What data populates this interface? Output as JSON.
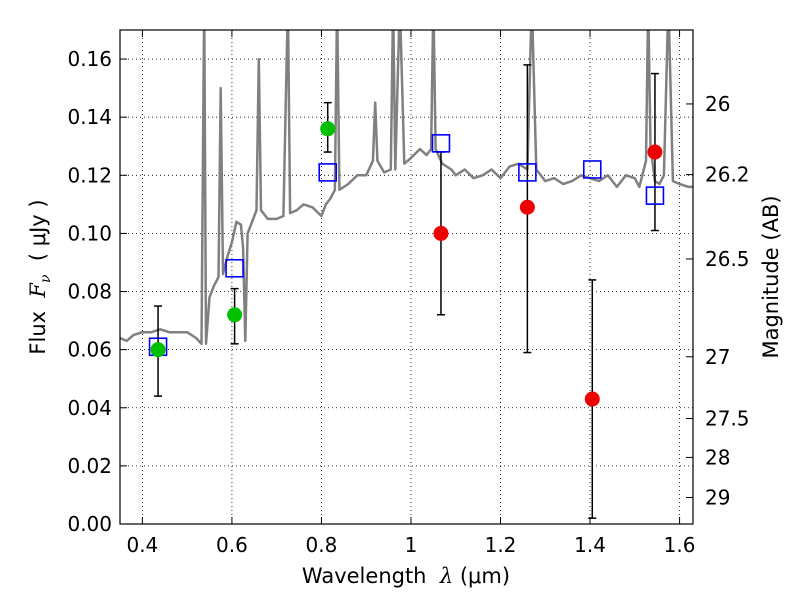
{
  "chart_data": {
    "type": "scatter",
    "xlabel": {
      "prefix": "Wavelength  ",
      "symbol": "λ",
      "unit": " (μm)"
    },
    "ylabel": {
      "prefix": "Flux  ",
      "symbol": "F",
      "subscript": "ν",
      "unit": "  ( μJy )"
    },
    "ylabel_right": "Magnitude (AB)",
    "xlim": [
      0.35,
      1.63
    ],
    "ylim": [
      0.0,
      0.17
    ],
    "grid": true,
    "x_ticks": [
      {
        "value": 0.4,
        "label": "0.4"
      },
      {
        "value": 0.6,
        "label": "0.6"
      },
      {
        "value": 0.8,
        "label": "0.8"
      },
      {
        "value": 1.0,
        "label": "1"
      },
      {
        "value": 1.2,
        "label": "1.2"
      },
      {
        "value": 1.4,
        "label": "1.4"
      },
      {
        "value": 1.6,
        "label": "1.6"
      }
    ],
    "y_ticks": [
      {
        "value": 0.0,
        "label": "0.00"
      },
      {
        "value": 0.02,
        "label": "0.02"
      },
      {
        "value": 0.04,
        "label": "0.04"
      },
      {
        "value": 0.06,
        "label": "0.06"
      },
      {
        "value": 0.08,
        "label": "0.08"
      },
      {
        "value": 0.1,
        "label": "0.10"
      },
      {
        "value": 0.12,
        "label": "0.12"
      },
      {
        "value": 0.14,
        "label": "0.14"
      },
      {
        "value": 0.16,
        "label": "0.16"
      }
    ],
    "right_ticks": [
      {
        "mag": 26.0,
        "label": "26"
      },
      {
        "mag": 26.2,
        "label": "26.2"
      },
      {
        "mag": 26.5,
        "label": "26.5"
      },
      {
        "mag": 27.0,
        "label": "27"
      },
      {
        "mag": 27.5,
        "label": "27.5"
      },
      {
        "mag": 28.0,
        "label": "28"
      },
      {
        "mag": 29.0,
        "label": "29"
      }
    ],
    "colors": {
      "spectrum": "#808080",
      "model": "#0000ff",
      "detected": "#00c000",
      "upper": "#ee0000",
      "errorbar": "#000000"
    },
    "model_points": [
      {
        "x": 0.435,
        "y": 0.061
      },
      {
        "x": 0.606,
        "y": 0.088
      },
      {
        "x": 0.814,
        "y": 0.121
      },
      {
        "x": 1.067,
        "y": 0.131
      },
      {
        "x": 1.26,
        "y": 0.121
      },
      {
        "x": 1.405,
        "y": 0.122
      },
      {
        "x": 1.545,
        "y": 0.113
      }
    ],
    "detected_points": [
      {
        "x": 0.435,
        "y": 0.06,
        "err_low": 0.044,
        "err_high": 0.075
      },
      {
        "x": 0.606,
        "y": 0.072,
        "err_low": 0.062,
        "err_high": 0.081
      },
      {
        "x": 0.814,
        "y": 0.136,
        "err_low": 0.128,
        "err_high": 0.145
      }
    ],
    "upper_points": [
      {
        "x": 1.067,
        "y": 0.1,
        "err_low": 0.072,
        "err_high": 0.128
      },
      {
        "x": 1.26,
        "y": 0.109,
        "err_low": 0.059,
        "err_high": 0.158
      },
      {
        "x": 1.405,
        "y": 0.043,
        "err_low": 0.002,
        "err_high": 0.084
      },
      {
        "x": 1.545,
        "y": 0.128,
        "err_low": 0.101,
        "err_high": 0.155
      }
    ],
    "spectrum": [
      [
        0.35,
        0.064
      ],
      [
        0.365,
        0.063
      ],
      [
        0.38,
        0.065
      ],
      [
        0.4,
        0.066
      ],
      [
        0.42,
        0.066
      ],
      [
        0.44,
        0.067
      ],
      [
        0.46,
        0.066
      ],
      [
        0.48,
        0.066
      ],
      [
        0.5,
        0.066
      ],
      [
        0.52,
        0.064
      ],
      [
        0.532,
        0.062
      ],
      [
        0.538,
        0.18
      ],
      [
        0.542,
        0.062
      ],
      [
        0.55,
        0.078
      ],
      [
        0.56,
        0.082
      ],
      [
        0.57,
        0.085
      ],
      [
        0.575,
        0.15
      ],
      [
        0.58,
        0.086
      ],
      [
        0.59,
        0.092
      ],
      [
        0.6,
        0.097
      ],
      [
        0.61,
        0.104
      ],
      [
        0.62,
        0.103
      ],
      [
        0.625,
        0.095
      ],
      [
        0.63,
        0.063
      ],
      [
        0.635,
        0.1
      ],
      [
        0.645,
        0.104
      ],
      [
        0.655,
        0.108
      ],
      [
        0.66,
        0.16
      ],
      [
        0.665,
        0.108
      ],
      [
        0.67,
        0.107
      ],
      [
        0.68,
        0.105
      ],
      [
        0.7,
        0.105
      ],
      [
        0.715,
        0.106
      ],
      [
        0.725,
        0.18
      ],
      [
        0.73,
        0.107
      ],
      [
        0.745,
        0.108
      ],
      [
        0.76,
        0.11
      ],
      [
        0.78,
        0.109
      ],
      [
        0.8,
        0.106
      ],
      [
        0.81,
        0.11
      ],
      [
        0.82,
        0.112
      ],
      [
        0.83,
        0.115
      ],
      [
        0.835,
        0.18
      ],
      [
        0.84,
        0.115
      ],
      [
        0.86,
        0.117
      ],
      [
        0.88,
        0.12
      ],
      [
        0.9,
        0.12
      ],
      [
        0.915,
        0.125
      ],
      [
        0.92,
        0.145
      ],
      [
        0.925,
        0.125
      ],
      [
        0.94,
        0.121
      ],
      [
        0.955,
        0.122
      ],
      [
        0.96,
        0.18
      ],
      [
        0.965,
        0.122
      ],
      [
        0.975,
        0.18
      ],
      [
        0.985,
        0.124
      ],
      [
        1.0,
        0.126
      ],
      [
        1.02,
        0.129
      ],
      [
        1.035,
        0.127
      ],
      [
        1.045,
        0.129
      ],
      [
        1.05,
        0.18
      ],
      [
        1.055,
        0.129
      ],
      [
        1.07,
        0.124
      ],
      [
        1.09,
        0.122
      ],
      [
        1.1,
        0.12
      ],
      [
        1.12,
        0.122
      ],
      [
        1.14,
        0.119
      ],
      [
        1.16,
        0.12
      ],
      [
        1.18,
        0.122
      ],
      [
        1.2,
        0.119
      ],
      [
        1.22,
        0.123
      ],
      [
        1.24,
        0.124
      ],
      [
        1.26,
        0.122
      ],
      [
        1.27,
        0.18
      ],
      [
        1.28,
        0.122
      ],
      [
        1.3,
        0.118
      ],
      [
        1.32,
        0.119
      ],
      [
        1.34,
        0.117
      ],
      [
        1.36,
        0.118
      ],
      [
        1.38,
        0.12
      ],
      [
        1.4,
        0.119
      ],
      [
        1.42,
        0.118
      ],
      [
        1.44,
        0.12
      ],
      [
        1.46,
        0.116
      ],
      [
        1.48,
        0.12
      ],
      [
        1.5,
        0.119
      ],
      [
        1.51,
        0.116
      ],
      [
        1.525,
        0.125
      ],
      [
        1.53,
        0.18
      ],
      [
        1.535,
        0.13
      ],
      [
        1.545,
        0.118
      ],
      [
        1.555,
        0.117
      ],
      [
        1.565,
        0.12
      ],
      [
        1.575,
        0.18
      ],
      [
        1.585,
        0.118
      ],
      [
        1.6,
        0.117
      ],
      [
        1.62,
        0.116
      ],
      [
        1.63,
        0.116
      ]
    ]
  }
}
